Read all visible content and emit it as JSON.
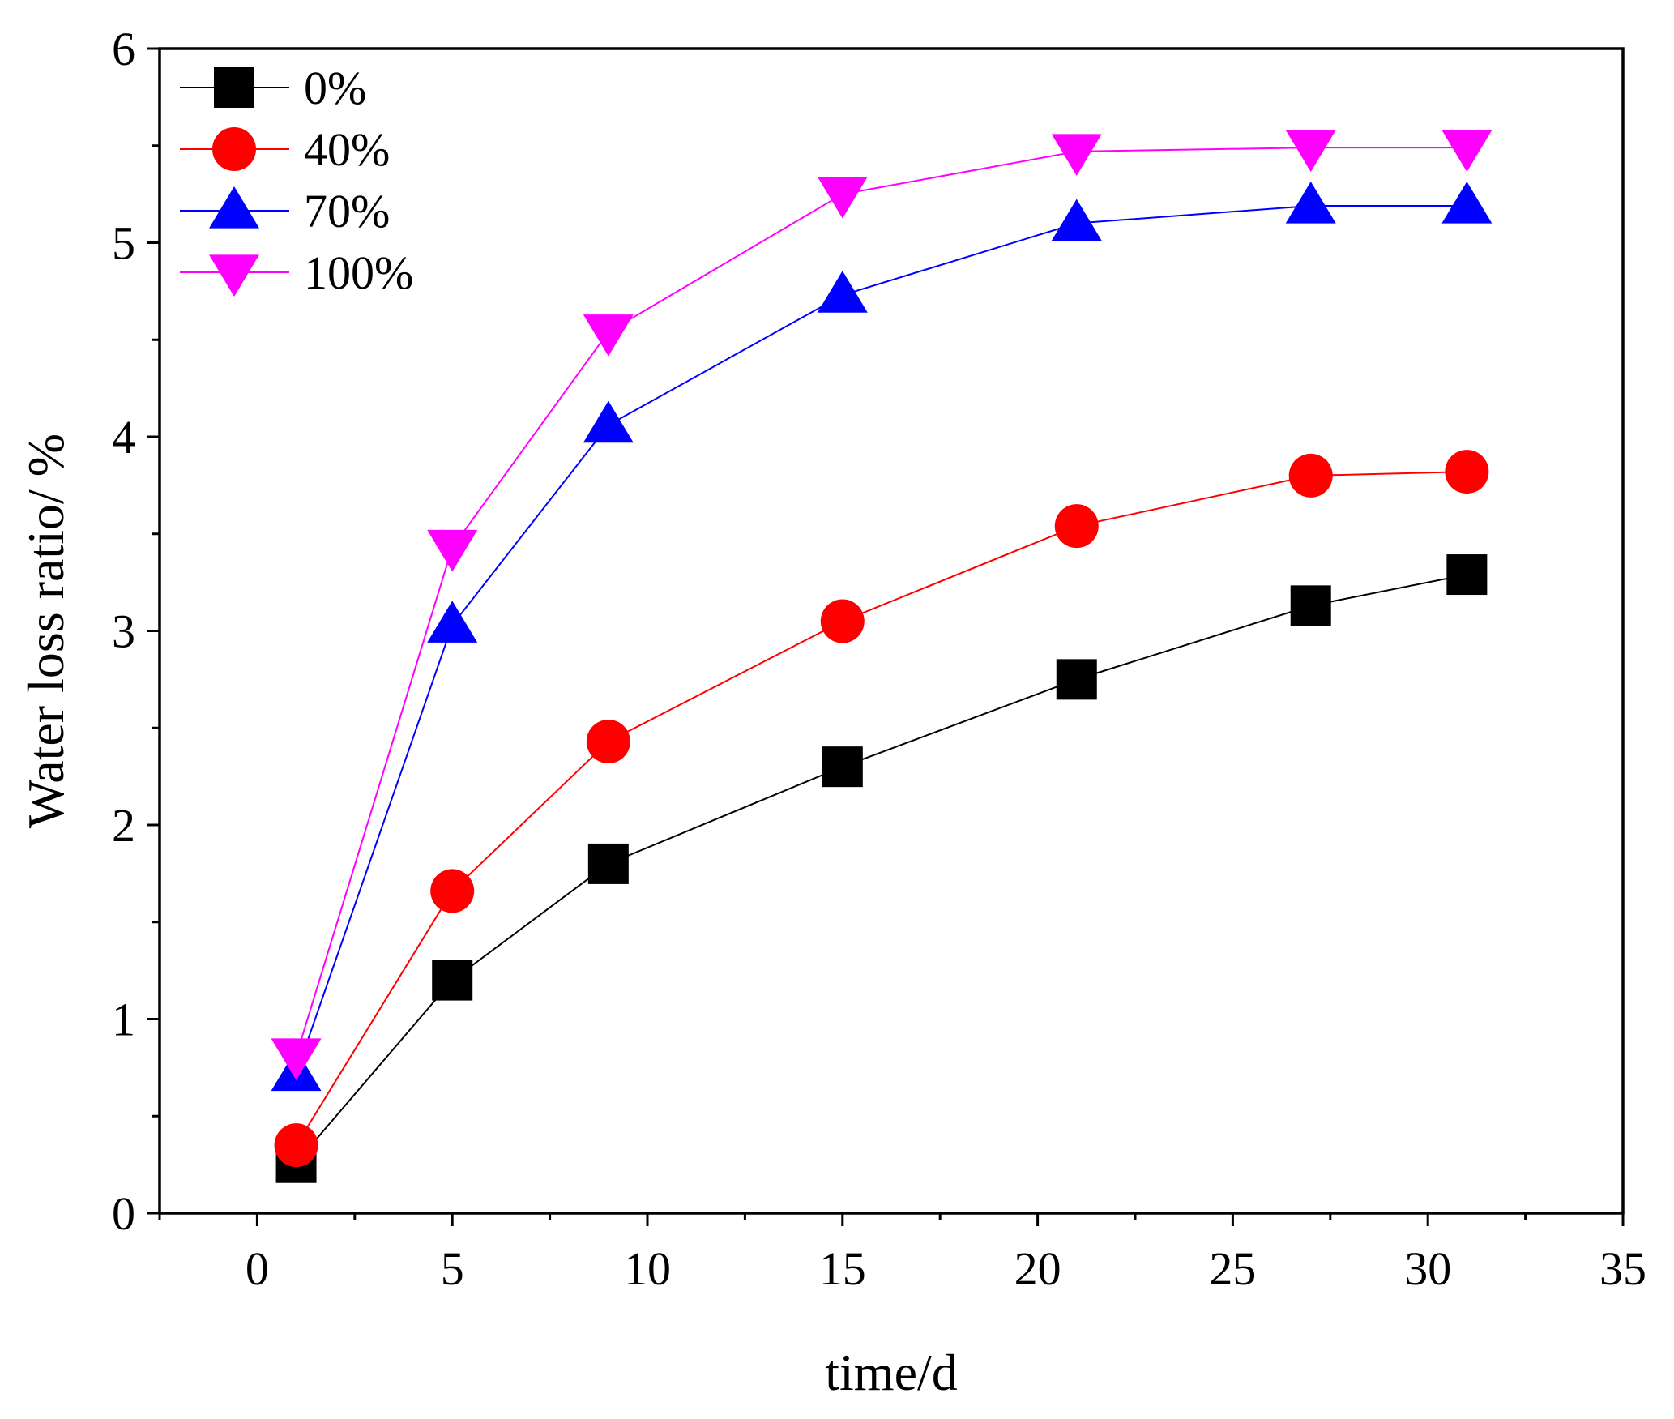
{
  "chart_data": {
    "type": "line",
    "title": "",
    "xlabel": "time/d",
    "ylabel": "Water loss ratio/ %",
    "xlim": [
      -2.5,
      35
    ],
    "ylim": [
      0,
      6
    ],
    "xticks": [
      0,
      5,
      10,
      15,
      20,
      25,
      30,
      35
    ],
    "xtick_labels": [
      "0",
      "5",
      "10",
      "15",
      "20",
      "25",
      "30",
      "35"
    ],
    "yticks": [
      0,
      1,
      2,
      3,
      4,
      5,
      6
    ],
    "ytick_labels": [
      "0",
      "1",
      "2",
      "3",
      "4",
      "5",
      "6"
    ],
    "grid": false,
    "legend_position": "top-left",
    "x": [
      1,
      5,
      9,
      15,
      21,
      27,
      31
    ],
    "series": [
      {
        "name": "0%",
        "marker": "square",
        "color": "#000000",
        "values": [
          0.26,
          1.2,
          1.8,
          2.3,
          2.75,
          3.13,
          3.29
        ]
      },
      {
        "name": "40%",
        "marker": "circle",
        "color": "#ff0000",
        "values": [
          0.35,
          1.66,
          2.43,
          3.05,
          3.54,
          3.8,
          3.82
        ]
      },
      {
        "name": "70%",
        "marker": "triangle-up",
        "color": "#0000ff",
        "values": [
          0.72,
          3.03,
          4.06,
          4.73,
          5.1,
          5.19,
          5.19
        ]
      },
      {
        "name": "100%",
        "marker": "triangle-down",
        "color": "#ff00ff",
        "values": [
          0.81,
          3.43,
          4.54,
          5.25,
          5.47,
          5.49,
          5.49
        ]
      }
    ]
  }
}
